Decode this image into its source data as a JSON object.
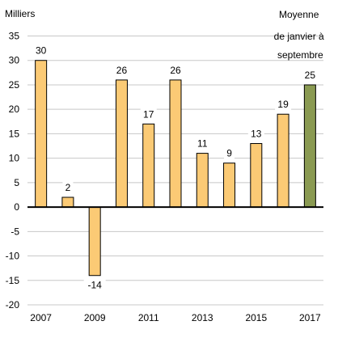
{
  "chart_data": {
    "type": "bar",
    "unit_label": "Milliers",
    "categories": [
      "2007",
      "2008",
      "2009",
      "2010",
      "2011",
      "2012",
      "2013",
      "2014",
      "2015",
      "2016",
      "2017"
    ],
    "x_tick_labels": [
      "2007",
      "2009",
      "2011",
      "2013",
      "2015",
      "2017"
    ],
    "values": [
      30,
      2,
      -14,
      26,
      17,
      26,
      11,
      9,
      13,
      19,
      25
    ],
    "data_labels": [
      "30",
      "2",
      "-14",
      "26",
      "17",
      "26",
      "11",
      "9",
      "13",
      "19",
      "25"
    ],
    "ylim": [
      -20,
      35
    ],
    "yticks": [
      35,
      30,
      25,
      20,
      15,
      10,
      5,
      0,
      -5,
      -10,
      -15,
      -20
    ],
    "grid": true,
    "annotation": [
      "Moyenne",
      "de janvier à",
      "septembre"
    ],
    "colors": {
      "bar": "#fbca75",
      "highlight": "#8a9a52",
      "grid": "#c8c8c8",
      "axis": "#000000"
    },
    "highlight_category": "2017"
  }
}
